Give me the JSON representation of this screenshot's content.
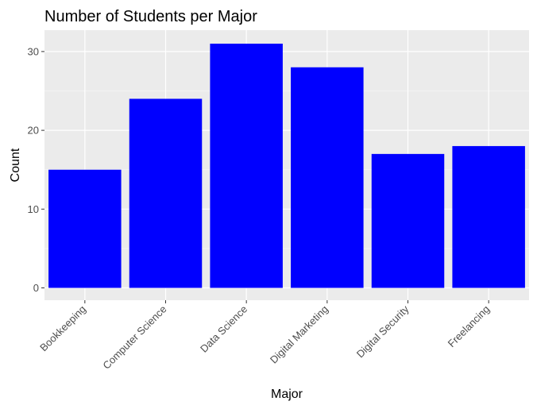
{
  "chart_data": {
    "type": "bar",
    "title": "Number of Students per Major",
    "xlabel": "Major",
    "ylabel": "Count",
    "categories": [
      "Bookkeeping",
      "Computer Science",
      "Data Science",
      "Digital Marketing",
      "Digital Security",
      "Freelancing"
    ],
    "values": [
      15,
      24,
      31,
      28,
      17,
      18
    ],
    "ylim": [
      0,
      32.5
    ],
    "yticks": [
      0,
      10,
      20,
      30
    ],
    "ytick_labels": [
      "0",
      "10",
      "20",
      "30"
    ],
    "grid": true,
    "legend": "none",
    "colors": {
      "bar": "#0000ff",
      "panel_background": "#ebebeb",
      "grid_major": "#ffffff",
      "grid_minor": "#f5f5f5"
    }
  }
}
